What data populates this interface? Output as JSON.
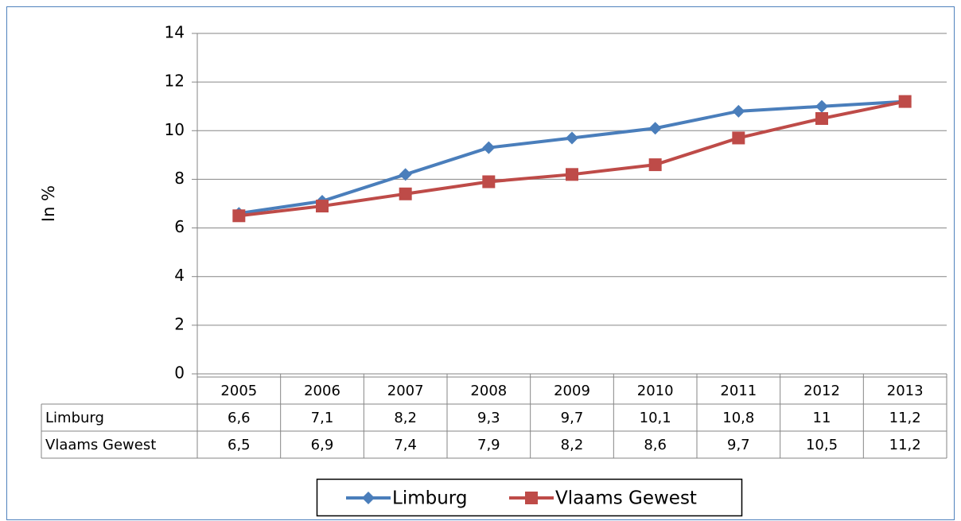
{
  "chart_data": {
    "type": "line",
    "y_label": "In %",
    "categories": [
      "2005",
      "2006",
      "2007",
      "2008",
      "2009",
      "2010",
      "2011",
      "2012",
      "2013"
    ],
    "series": [
      {
        "name": "Limburg",
        "color": "#4a7ebb",
        "marker": "diamond",
        "values": [
          6.6,
          7.1,
          8.2,
          9.3,
          9.7,
          10.1,
          10.8,
          11,
          11.2
        ],
        "value_labels": [
          "6,6",
          "7,1",
          "8,2",
          "9,3",
          "9,7",
          "10,1",
          "10,8",
          "11",
          "11,2"
        ]
      },
      {
        "name": "Vlaams Gewest",
        "color": "#be4b48",
        "marker": "square",
        "values": [
          6.5,
          6.9,
          7.4,
          7.9,
          8.2,
          8.6,
          9.7,
          10.5,
          11.2
        ],
        "value_labels": [
          "6,5",
          "6,9",
          "7,4",
          "7,9",
          "8,2",
          "8,6",
          "9,7",
          "10,5",
          "11,2"
        ]
      }
    ],
    "ylim": [
      0,
      14
    ],
    "yticks": [
      0,
      2,
      4,
      6,
      8,
      10,
      12,
      14
    ],
    "grid": true,
    "data_table": true,
    "legend": "bottom"
  }
}
